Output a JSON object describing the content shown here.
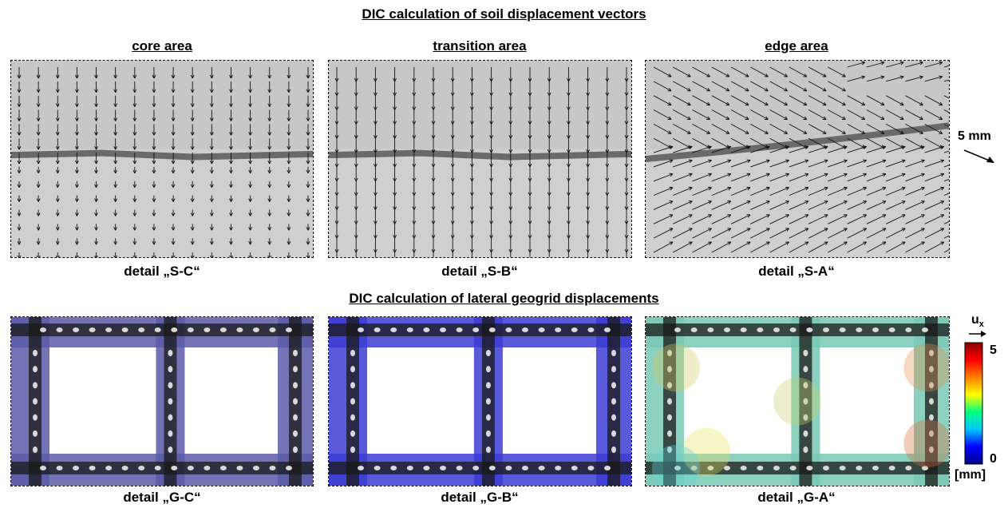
{
  "top_title": "DIC calculation of soil displacement vectors",
  "bottom_title": "DIC calculation of lateral geogrid displacements",
  "areas": [
    "core area",
    "transition area",
    "edge area"
  ],
  "top_captions": [
    "detail „S-C“",
    "detail „S-B“",
    "detail „S-A“"
  ],
  "bottom_captions": [
    "detail „G-C“",
    "detail „G-B“",
    "detail „G-A“"
  ],
  "scale_label": "5 mm",
  "colorbar": {
    "symbol": "u",
    "subscript": "x",
    "max_label": "5",
    "min_label": "0",
    "unit": "[mm]",
    "colors": [
      "#00008b",
      "#0000ff",
      "#00c8ff",
      "#00ff80",
      "#ffff00",
      "#ff8000",
      "#ff0000",
      "#8b0000"
    ]
  },
  "overlay_colors": {
    "core": "#5a5aa8",
    "transition": "#3c3cd2",
    "edge": "#78c8b4"
  }
}
